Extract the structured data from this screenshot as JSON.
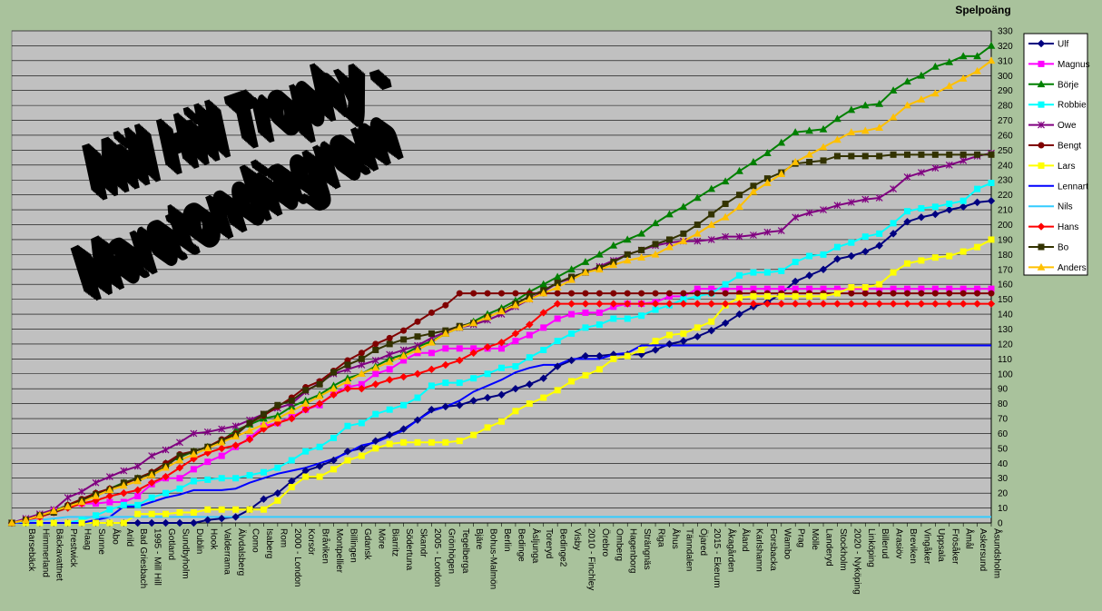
{
  "chart_data": {
    "type": "line",
    "title": [
      "Mill Hill Trophy -",
      "Maratondiagram"
    ],
    "y_label": "Spelpoäng",
    "ylim": [
      0,
      330
    ],
    "yticks": [
      0,
      10,
      20,
      30,
      40,
      50,
      60,
      70,
      80,
      90,
      100,
      110,
      120,
      130,
      140,
      150,
      160,
      170,
      180,
      190,
      200,
      210,
      220,
      230,
      240,
      250,
      260,
      270,
      280,
      290,
      300,
      310,
      320,
      330
    ],
    "grid": true,
    "legend": "right",
    "categories": [
      null,
      "Barsebäck",
      "Himmerland",
      "Bäckavattnet",
      "Prestwick",
      "Haag",
      "Sunne",
      "Åbo",
      "Arild",
      "Bad Griesbach",
      "1995 - Mill Hill",
      "Gotland",
      "Sundbyholm",
      "Dublin",
      "Hook",
      "Valderrama",
      "Älvdalsberg",
      "Como",
      "Isaberg",
      "Rom",
      "2000 - London",
      "Korsör",
      "Bråviken",
      "Montpellier",
      "Billingen",
      "Gdansk",
      "Möre",
      "Biarritz",
      "Södertuna",
      "Skandr",
      "2005 - London",
      "Grönhögen",
      "Tegelberga",
      "Bjäre",
      "Bohus-Malmön",
      "Berlin",
      "Bedinge",
      "Åsljunga",
      "Toreryd",
      "Bedinge2",
      "Visby",
      "2010 - Finchley",
      "Örebro",
      "Omberg",
      "Hagenborg",
      "Strängnäs",
      "Riga",
      "Åhus",
      "Tänndalen",
      "Öjared",
      "2015 - Ekerum",
      "Åkagården",
      "Åland",
      "Karlshamn",
      "Forsbacka",
      "Wambo",
      "Prag",
      "Mölle",
      "Landeryd",
      "Stockholm",
      "2020 - Nyköping",
      "Linköping",
      "Billerud",
      "Arasiöv",
      "Breviken",
      "Vingåker",
      "Uppsala",
      "Frösåker",
      "Åmål",
      "Askersund",
      "Åsundsholm"
    ],
    "series": [
      {
        "name": "Ulf",
        "color": "#000080",
        "marker": "diamond",
        "values": [
          0,
          0,
          0,
          0,
          0,
          0,
          0,
          0,
          0,
          0,
          0,
          0,
          0,
          0,
          2,
          3,
          4,
          9,
          16,
          20,
          28,
          35,
          38,
          42,
          48,
          50,
          55,
          59,
          63,
          69,
          76,
          78,
          79,
          82,
          84,
          86,
          90,
          93,
          97,
          105,
          109,
          112,
          112,
          113,
          113,
          113,
          116,
          120,
          122,
          125,
          129,
          134,
          140,
          145,
          148,
          154,
          162,
          166,
          170,
          177,
          179,
          182,
          186,
          194,
          202,
          205,
          207,
          210,
          212,
          215,
          216
        ]
      },
      {
        "name": "Magnus",
        "color": "#ff00ff",
        "marker": "square",
        "values": [
          0,
          2,
          4,
          8,
          11,
          13,
          13,
          14,
          14,
          18,
          26,
          30,
          30,
          36,
          41,
          45,
          51,
          57,
          65,
          67,
          71,
          76,
          79,
          87,
          91,
          93,
          100,
          103,
          109,
          114,
          114,
          117,
          117,
          117,
          117,
          117,
          122,
          126,
          131,
          137,
          140,
          141,
          141,
          145,
          147,
          147,
          148,
          152,
          152,
          157,
          157,
          157,
          157,
          157,
          157,
          157,
          157,
          157,
          157,
          157,
          157,
          157,
          157,
          157,
          157,
          157,
          157,
          157,
          157,
          157,
          157
        ]
      },
      {
        "name": "Börje",
        "color": "#008000",
        "marker": "triangle",
        "values": [
          0,
          2,
          5,
          8,
          12,
          15,
          20,
          23,
          27,
          30,
          34,
          40,
          44,
          48,
          51,
          55,
          62,
          66,
          70,
          72,
          78,
          82,
          86,
          92,
          97,
          100,
          105,
          110,
          113,
          118,
          122,
          127,
          131,
          135,
          140,
          144,
          149,
          155,
          160,
          165,
          170,
          175,
          180,
          186,
          190,
          194,
          201,
          207,
          212,
          218,
          224,
          229,
          236,
          242,
          248,
          255,
          262,
          263,
          264,
          271,
          277,
          280,
          281,
          290,
          296,
          300,
          306,
          309,
          313,
          313,
          320
        ]
      },
      {
        "name": "Robbie",
        "color": "#00ffff",
        "marker": "square",
        "values": [
          0,
          0,
          0,
          0,
          0,
          2,
          5,
          9,
          12,
          12,
          17,
          20,
          23,
          28,
          29,
          30,
          30,
          32,
          34,
          37,
          42,
          48,
          51,
          57,
          65,
          67,
          73,
          76,
          79,
          84,
          92,
          94,
          94,
          97,
          100,
          104,
          105,
          111,
          116,
          122,
          127,
          131,
          133,
          137,
          137,
          139,
          143,
          146,
          150,
          152,
          154,
          160,
          166,
          168,
          168,
          169,
          175,
          179,
          180,
          185,
          188,
          192,
          194,
          201,
          209,
          211,
          212,
          214,
          216,
          224,
          228
        ]
      },
      {
        "name": "Owe",
        "color": "#800080",
        "marker": "star",
        "values": [
          0,
          3,
          6,
          9,
          17,
          21,
          27,
          31,
          35,
          38,
          45,
          49,
          54,
          60,
          61,
          63,
          65,
          69,
          73,
          77,
          80,
          88,
          94,
          100,
          103,
          106,
          109,
          113,
          116,
          119,
          124,
          128,
          131,
          133,
          136,
          140,
          145,
          150,
          155,
          161,
          164,
          168,
          172,
          176,
          180,
          183,
          186,
          188,
          189,
          189,
          190,
          192,
          192,
          193,
          195,
          196,
          205,
          208,
          210,
          213,
          215,
          217,
          218,
          224,
          232,
          235,
          238,
          240,
          243,
          246,
          248
        ]
      },
      {
        "name": "Bengt",
        "color": "#800000",
        "marker": "circle",
        "values": [
          0,
          2,
          5,
          7,
          12,
          16,
          20,
          23,
          26,
          30,
          34,
          40,
          46,
          48,
          51,
          56,
          60,
          67,
          72,
          78,
          84,
          91,
          95,
          102,
          109,
          114,
          120,
          124,
          129,
          135,
          141,
          146,
          154,
          154,
          154,
          154,
          154,
          154,
          154,
          154,
          154,
          154,
          154,
          154,
          154,
          154,
          154,
          154,
          154,
          154,
          154,
          154,
          154,
          154,
          154,
          154,
          154,
          154,
          154,
          154,
          154,
          154,
          154,
          154,
          154,
          154,
          154,
          154,
          154,
          154,
          154
        ]
      },
      {
        "name": "Lars",
        "color": "#ffff00",
        "marker": "square",
        "values": [
          0,
          0,
          0,
          0,
          0,
          0,
          0,
          0,
          0,
          6,
          6,
          6,
          7,
          7,
          9,
          9,
          9,
          9,
          9,
          15,
          24,
          31,
          31,
          36,
          42,
          45,
          50,
          53,
          54,
          54,
          54,
          54,
          55,
          59,
          64,
          68,
          75,
          80,
          84,
          89,
          95,
          99,
          103,
          110,
          112,
          116,
          122,
          126,
          127,
          131,
          135,
          146,
          151,
          152,
          152,
          152,
          152,
          152,
          152,
          154,
          158,
          158,
          160,
          168,
          174,
          176,
          178,
          179,
          182,
          185,
          190
        ]
      },
      {
        "name": "Lennart",
        "color": "#0000ff",
        "marker": "none",
        "values": [
          0,
          0,
          0,
          0,
          0,
          0,
          2,
          4,
          11,
          11,
          14,
          17,
          19,
          22,
          22,
          22,
          23,
          27,
          30,
          33,
          35,
          37,
          40,
          43,
          47,
          52,
          54,
          58,
          62,
          69,
          75,
          78,
          82,
          88,
          92,
          96,
          101,
          104,
          106,
          106,
          110,
          110,
          110,
          113,
          114,
          119,
          119,
          119,
          119,
          119,
          119,
          119,
          119,
          119,
          119,
          119,
          119,
          119,
          119,
          119,
          119,
          119,
          119,
          119,
          119,
          119,
          119,
          119,
          119,
          119,
          119
        ]
      },
      {
        "name": "Nils",
        "color": "#33ccff",
        "marker": "none",
        "values": [
          0,
          1,
          2,
          3,
          4,
          4,
          4,
          4,
          4,
          4,
          4,
          4,
          4,
          4,
          4,
          4,
          4,
          4,
          4,
          4,
          4,
          4,
          4,
          4,
          4,
          4,
          4,
          4,
          4,
          4,
          4,
          4,
          4,
          4,
          4,
          4,
          4,
          4,
          4,
          4,
          4,
          4,
          4,
          4,
          4,
          4,
          4,
          4,
          4,
          4,
          4,
          4,
          4,
          4,
          4,
          4,
          4,
          4,
          4,
          4,
          4,
          4,
          4,
          4,
          4,
          4,
          4,
          4,
          4,
          4,
          4
        ]
      },
      {
        "name": "Hans",
        "color": "#ff0000",
        "marker": "diamond",
        "values": [
          0,
          2,
          4,
          7,
          10,
          13,
          15,
          18,
          20,
          22,
          27,
          31,
          37,
          43,
          47,
          50,
          52,
          56,
          63,
          67,
          70,
          76,
          80,
          86,
          90,
          90,
          93,
          96,
          98,
          100,
          103,
          106,
          109,
          114,
          118,
          121,
          127,
          133,
          141,
          147,
          147,
          147,
          147,
          147,
          147,
          147,
          147,
          147,
          147,
          147,
          147,
          147,
          147,
          147,
          147,
          147,
          147,
          147,
          147,
          147,
          147,
          147,
          147,
          147,
          147,
          147,
          147,
          147,
          147,
          147,
          147
        ]
      },
      {
        "name": "Bo",
        "color": "#333300",
        "marker": "square",
        "values": [
          0,
          2,
          5,
          7,
          11,
          15,
          19,
          22,
          27,
          30,
          33,
          38,
          45,
          48,
          51,
          55,
          59,
          67,
          73,
          79,
          82,
          89,
          93,
          101,
          106,
          110,
          116,
          120,
          123,
          125,
          127,
          129,
          132,
          134,
          138,
          142,
          147,
          152,
          156,
          161,
          165,
          168,
          171,
          175,
          180,
          183,
          187,
          190,
          194,
          200,
          207,
          214,
          220,
          226,
          231,
          235,
          241,
          242,
          243,
          246,
          246,
          246,
          246,
          247,
          247,
          247,
          247,
          247,
          247,
          247,
          247
        ]
      },
      {
        "name": "Anders",
        "color": "#ffc000",
        "marker": "triangle",
        "values": [
          0,
          2,
          5,
          8,
          11,
          14,
          18,
          22,
          25,
          28,
          32,
          37,
          42,
          46,
          50,
          54,
          58,
          62,
          66,
          70,
          75,
          80,
          85,
          90,
          95,
          100,
          104,
          108,
          112,
          116,
          121,
          127,
          131,
          134,
          138,
          142,
          146,
          150,
          154,
          158,
          163,
          168,
          170,
          173,
          176,
          178,
          180,
          185,
          189,
          194,
          200,
          205,
          212,
          222,
          228,
          234,
          242,
          247,
          252,
          257,
          262,
          263,
          265,
          272,
          280,
          284,
          288,
          293,
          298,
          303,
          310
        ]
      }
    ]
  }
}
